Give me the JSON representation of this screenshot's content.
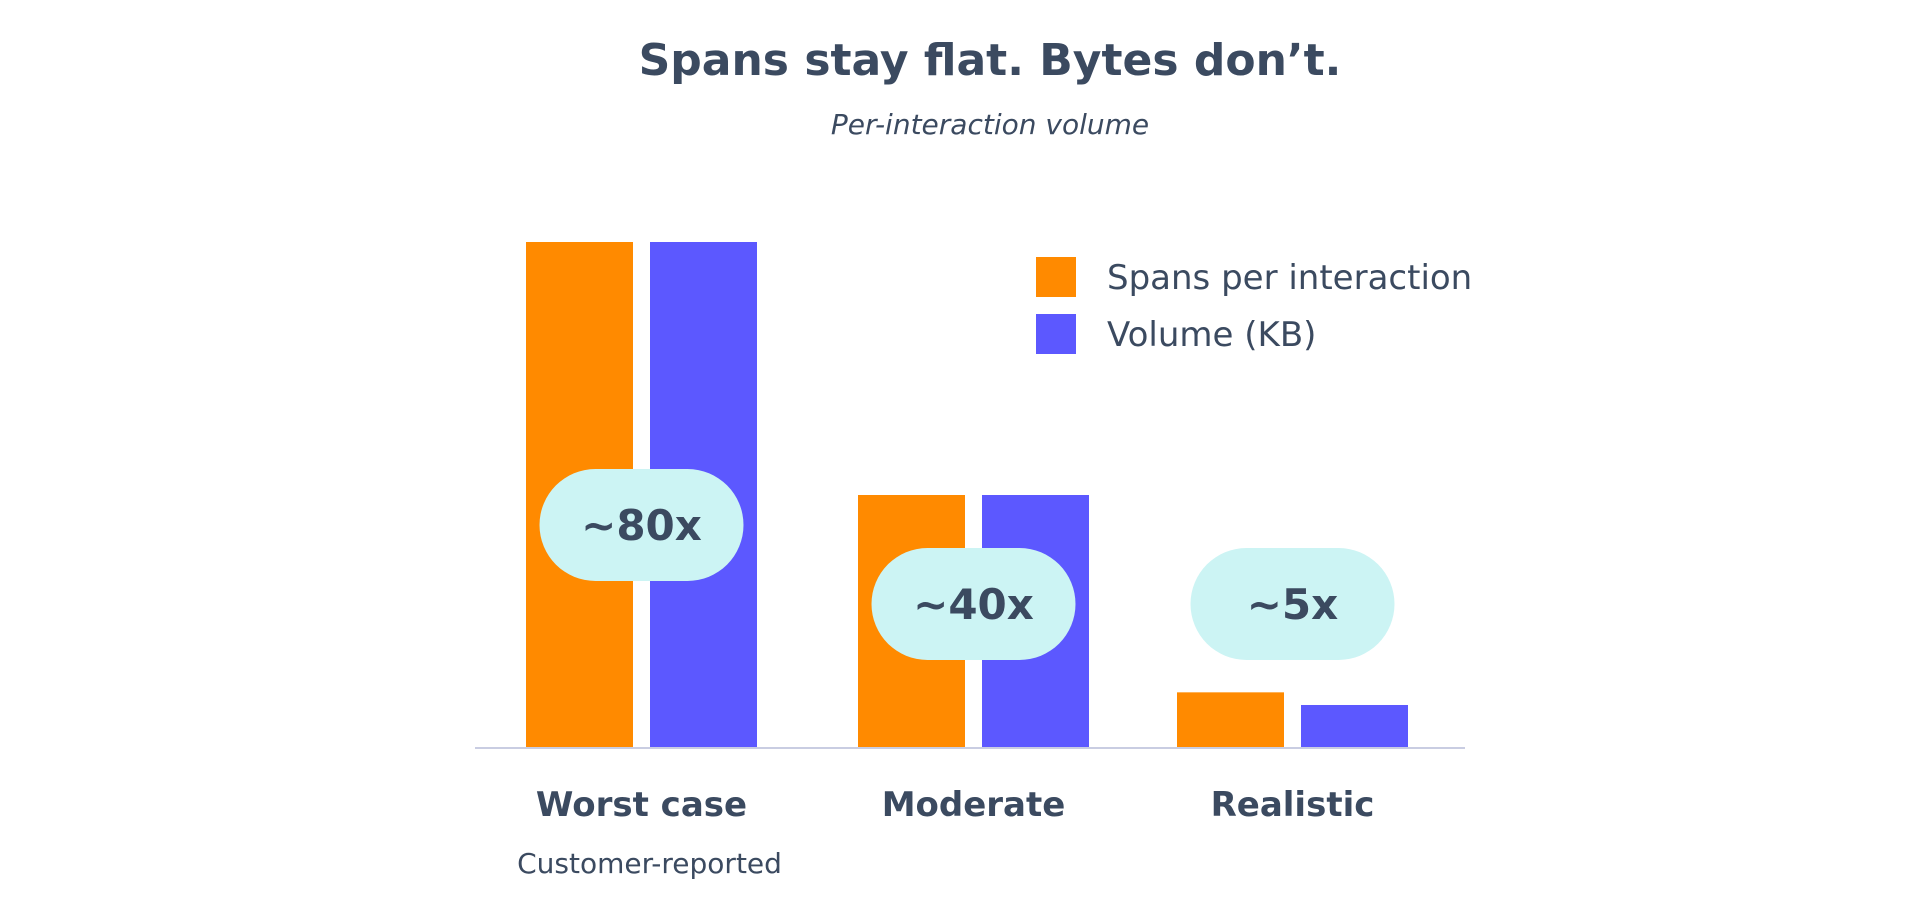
{
  "title": "Spans stay flat. Bytes don’t.",
  "subtitle": "Per-interaction volume",
  "colors": {
    "spans": "#ff8a00",
    "volume": "#5c58ff",
    "pill": "#ccf4f4",
    "text": "#3b4a60",
    "axis": "#c9cde2"
  },
  "chart_data": {
    "type": "bar",
    "title": "Spans stay flat. Bytes don’t.",
    "subtitle": "Per-interaction volume",
    "categories": [
      "Worst case",
      "Moderate",
      "Realistic"
    ],
    "category_sublabels": [
      "Customer-reported",
      "",
      ""
    ],
    "series": [
      {
        "name": "Spans per interaction",
        "values": [
          100,
          50,
          11
        ]
      },
      {
        "name": "Volume (KB)",
        "values": [
          100,
          50,
          8.5
        ]
      }
    ],
    "annotations": [
      "~80x",
      "~40x",
      "~5x"
    ],
    "ylim": [
      0,
      100
    ],
    "y_axis_shown": false,
    "grid": false,
    "legend_position": "top-right"
  }
}
